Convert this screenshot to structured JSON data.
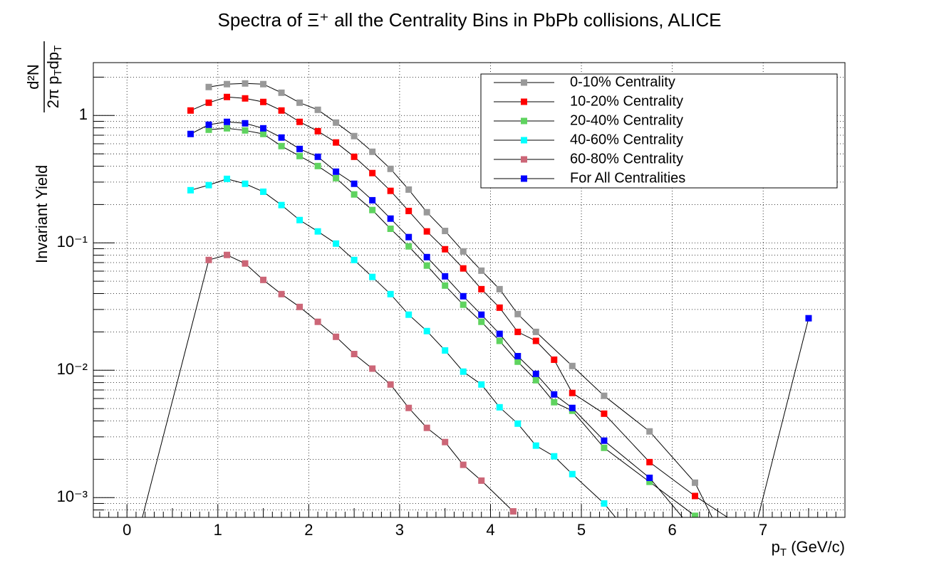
{
  "chart_data": {
    "type": "line",
    "title": "Spectra of Ξ⁺ all the Centrality Bins in PbPb collisions, ALICE",
    "xlabel": [
      "p",
      "T",
      " (GeV/c)"
    ],
    "ylabel": "Invariant Yield",
    "ylabel_fraction": {
      "numerator": "d²N",
      "denominator": [
        "2π p",
        "T",
        "dp",
        "T"
      ]
    },
    "xlim": [
      -0.37,
      7.9
    ],
    "xticks": [
      0,
      1,
      2,
      3,
      4,
      5,
      6,
      7
    ],
    "ylim": [
      0.0007,
      2.6
    ],
    "yticks": [
      {
        "value": 0.001,
        "label": "10⁻³"
      },
      {
        "value": 0.01,
        "label": "10⁻²"
      },
      {
        "value": 0.1,
        "label": "10⁻¹"
      },
      1
    ],
    "log_y": true,
    "grid": true,
    "legend": "top-right",
    "series": [
      {
        "name": "0-10% Centrality",
        "color": "#999999",
        "x": [
          0.9,
          1.1,
          1.3,
          1.5,
          1.7,
          1.9,
          2.1,
          2.3,
          2.5,
          2.7,
          2.9,
          3.1,
          3.3,
          3.5,
          3.7,
          3.9,
          4.1,
          4.3,
          4.5,
          4.9,
          5.25,
          5.75,
          6.25,
          6.75
        ],
        "values": [
          1.673,
          1.762,
          1.784,
          1.762,
          1.509,
          1.26,
          1.108,
          0.879,
          0.689,
          0.519,
          0.381,
          0.262,
          0.174,
          0.124,
          0.0857,
          0.0605,
          0.0433,
          0.0276,
          0.02,
          0.0108,
          0.0063,
          0.00331,
          0.00131,
          0.00025
        ]
      },
      {
        "name": "10-20% Centrality",
        "color": "#ff0000",
        "x": [
          0.7,
          0.9,
          1.1,
          1.3,
          1.5,
          1.7,
          1.9,
          2.1,
          2.3,
          2.5,
          2.7,
          2.9,
          3.1,
          3.3,
          3.5,
          3.7,
          3.9,
          4.1,
          4.3,
          4.5,
          4.7,
          4.9,
          5.25,
          5.75,
          6.25,
          6.75
        ],
        "values": [
          1.094,
          1.26,
          1.397,
          1.362,
          1.277,
          1.094,
          0.891,
          0.753,
          0.614,
          0.474,
          0.353,
          0.256,
          0.178,
          0.123,
          0.0891,
          0.063,
          0.0433,
          0.031,
          0.02,
          0.017,
          0.0121,
          0.00663,
          0.00456,
          0.0019,
          0.00103,
          0.0006
        ]
      },
      {
        "name": "20-40% Centrality",
        "color": "#5fd35f",
        "x": [
          0.9,
          1.1,
          1.3,
          1.5,
          1.7,
          1.9,
          2.1,
          2.3,
          2.5,
          2.7,
          2.9,
          3.1,
          3.3,
          3.5,
          3.7,
          3.9,
          4.1,
          4.3,
          4.5,
          4.7,
          4.9,
          5.25,
          5.75,
          6.25,
          6.75
        ],
        "values": [
          0.773,
          0.793,
          0.763,
          0.716,
          0.575,
          0.48,
          0.401,
          0.322,
          0.24,
          0.181,
          0.129,
          0.0938,
          0.0663,
          0.0462,
          0.0327,
          0.024,
          0.017,
          0.01167,
          0.00835,
          0.00561,
          0.00481,
          0.00246,
          0.00133,
          0.00072,
          0.0003
        ]
      },
      {
        "name": "40-60% Centrality",
        "color": "#00ffff",
        "x": [
          0.7,
          0.9,
          1.1,
          1.3,
          1.5,
          1.7,
          1.9,
          2.1,
          2.3,
          2.5,
          2.7,
          2.9,
          3.1,
          3.3,
          3.5,
          3.7,
          3.9,
          4.1,
          4.3,
          4.5,
          4.7,
          4.9,
          5.25,
          5.75
        ],
        "values": [
          0.259,
          0.284,
          0.318,
          0.291,
          0.252,
          0.198,
          0.151,
          0.123,
          0.0987,
          0.0734,
          0.054,
          0.0396,
          0.0273,
          0.0203,
          0.0143,
          0.00975,
          0.00773,
          0.00512,
          0.00381,
          0.00256,
          0.00211,
          0.00153,
          0.0009,
          0.00033
        ]
      },
      {
        "name": "60-80% Centrality",
        "color": "#cc6677",
        "x": [
          0.1,
          0.9,
          1.1,
          1.3,
          1.5,
          1.7,
          1.9,
          2.1,
          2.3,
          2.5,
          2.7,
          2.9,
          3.1,
          3.3,
          3.5,
          3.7,
          3.9,
          4.25
        ],
        "values": [
          0.00045,
          0.0734,
          0.0804,
          0.0689,
          0.0512,
          0.0396,
          0.0314,
          0.024,
          0.0183,
          0.0134,
          0.0103,
          0.00773,
          0.00506,
          0.00353,
          0.00273,
          0.00181,
          0.00136,
          0.00078
        ]
      },
      {
        "name": "For All Centralities",
        "color": "#0000ff",
        "x": [
          0.7,
          0.9,
          1.1,
          1.3,
          1.5,
          1.7,
          1.9,
          2.1,
          2.3,
          2.5,
          2.7,
          2.9,
          3.1,
          3.3,
          3.5,
          3.7,
          3.9,
          4.1,
          4.3,
          4.5,
          4.7,
          4.9,
          5.25,
          5.75,
          6.75,
          7.5
        ],
        "values": [
          0.716,
          0.846,
          0.891,
          0.868,
          0.793,
          0.671,
          0.546,
          0.474,
          0.362,
          0.291,
          0.216,
          0.155,
          0.111,
          0.0773,
          0.0546,
          0.0381,
          0.0273,
          0.0193,
          0.0129,
          0.00937,
          0.00646,
          0.00506,
          0.0028,
          0.00143,
          0.0002,
          0.0256
        ]
      }
    ]
  }
}
